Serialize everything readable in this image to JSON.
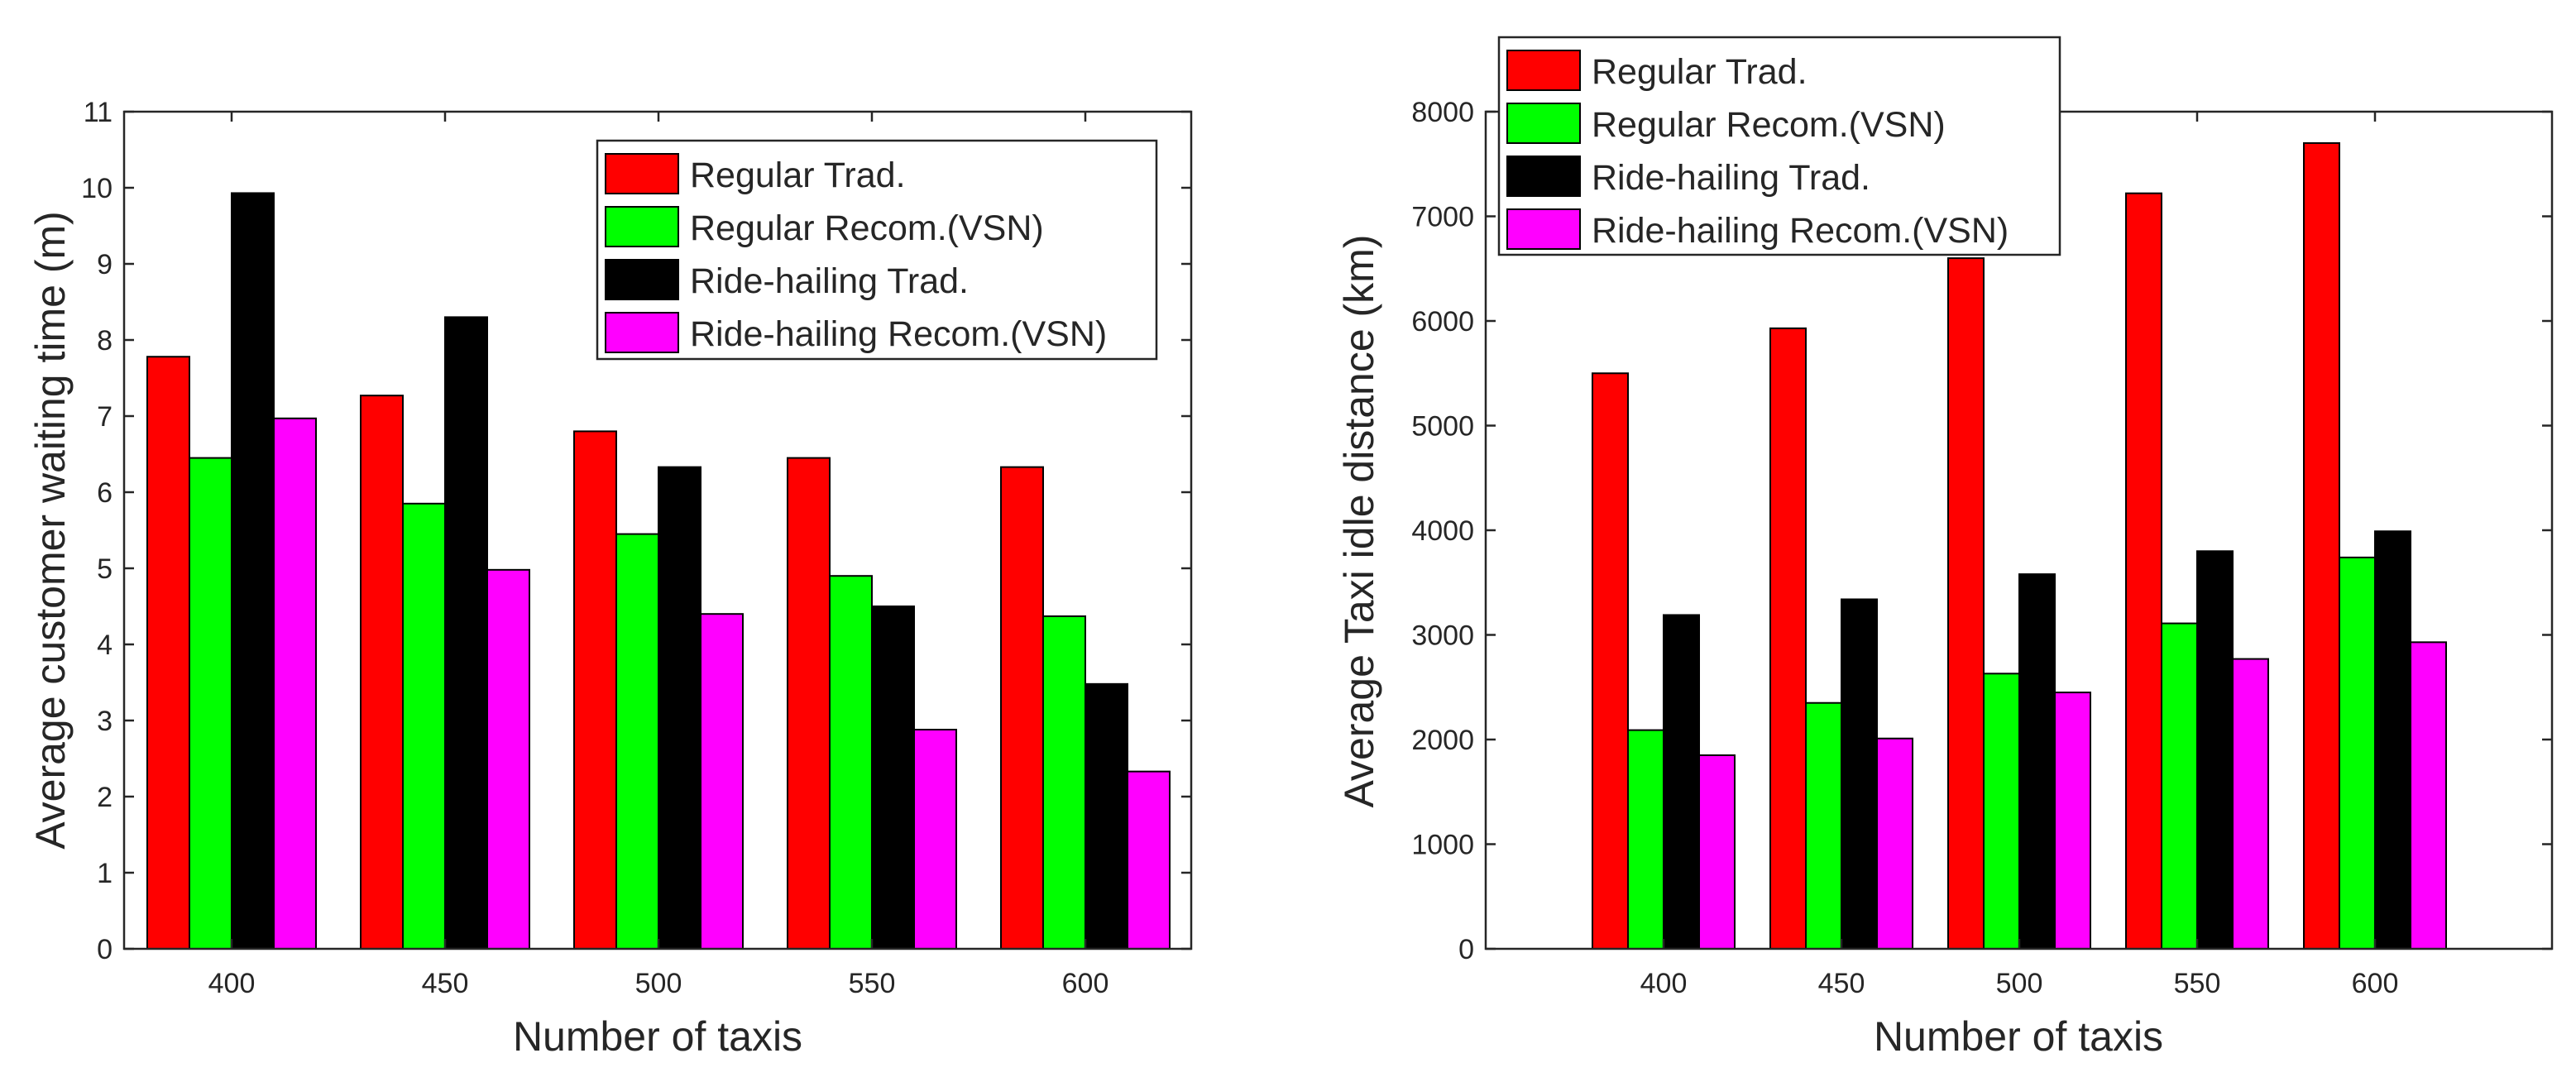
{
  "chart_data": [
    {
      "type": "bar",
      "title": "",
      "xlabel": "Number of taxis",
      "ylabel": "Average customer waiting time (m)",
      "categories": [
        "400",
        "450",
        "500",
        "550",
        "600"
      ],
      "ylim": [
        0,
        11
      ],
      "yticks": [
        "0",
        "1",
        "2",
        "3",
        "4",
        "5",
        "6",
        "7",
        "8",
        "9",
        "10",
        "11"
      ],
      "grid": false,
      "legend_position": "top-right",
      "series": [
        {
          "name": "Regular Trad.",
          "color": "#ff0000",
          "values": [
            7.78,
            7.27,
            6.8,
            6.45,
            6.33
          ]
        },
        {
          "name": "Regular Recom.(VSN)",
          "color": "#00ff00",
          "values": [
            6.45,
            5.85,
            5.45,
            4.9,
            4.37
          ]
        },
        {
          "name": "Ride-hailing Trad.",
          "color": "#000000",
          "values": [
            9.93,
            8.3,
            6.33,
            4.5,
            3.48
          ]
        },
        {
          "name": "Ride-hailing Recom.(VSN)",
          "color": "#ff00ff",
          "values": [
            6.97,
            4.98,
            4.4,
            2.88,
            2.33
          ]
        }
      ]
    },
    {
      "type": "bar",
      "title": "",
      "xlabel": "Number of taxis",
      "ylabel": "Average Taxi idle distance (km)",
      "categories": [
        "400",
        "450",
        "500",
        "550",
        "600"
      ],
      "ylim": [
        0,
        8000
      ],
      "yticks": [
        "0",
        "1000",
        "2000",
        "3000",
        "4000",
        "5000",
        "6000",
        "7000",
        "8000"
      ],
      "xlim": [
        350,
        650
      ],
      "grid": false,
      "legend_position": "top-left",
      "series": [
        {
          "name": "Regular Trad.",
          "color": "#ff0000",
          "values": [
            5500,
            5930,
            6600,
            7220,
            7700
          ]
        },
        {
          "name": "Regular Recom.(VSN)",
          "color": "#00ff00",
          "values": [
            2090,
            2350,
            2630,
            3110,
            3740
          ]
        },
        {
          "name": "Ride-hailing Trad.",
          "color": "#000000",
          "values": [
            3190,
            3340,
            3580,
            3800,
            3990
          ]
        },
        {
          "name": "Ride-hailing Recom.(VSN)",
          "color": "#ff00ff",
          "values": [
            1850,
            2010,
            2450,
            2770,
            2930
          ]
        }
      ]
    }
  ]
}
